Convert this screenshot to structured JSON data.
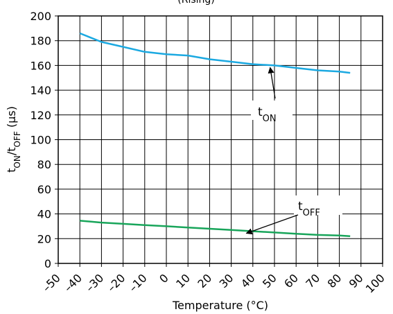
{
  "chart_data": {
    "type": "line",
    "title": "(Rising)",
    "xlabel": "Temperature (°C)",
    "ylabel": "tON/tOFF (µs)",
    "xlim": [
      -50,
      100
    ],
    "ylim": [
      0,
      200
    ],
    "x_ticks": [
      "–50",
      "–40",
      "–30",
      "–20",
      "–10",
      "0",
      "10",
      "20",
      "30",
      "40",
      "50",
      "60",
      "70",
      "80",
      "90",
      "100"
    ],
    "x_tick_values": [
      -50,
      -40,
      -30,
      -20,
      -10,
      0,
      10,
      20,
      30,
      40,
      50,
      60,
      70,
      80,
      90,
      100
    ],
    "y_ticks": [
      "0",
      "20",
      "40",
      "60",
      "80",
      "100",
      "120",
      "140",
      "160",
      "180",
      "200"
    ],
    "y_tick_values": [
      0,
      20,
      40,
      60,
      80,
      100,
      120,
      140,
      160,
      180,
      200
    ],
    "grid": true,
    "series": [
      {
        "name": "tON",
        "color": "#1ba9e1",
        "x": [
          -40,
          -30,
          -20,
          -10,
          0,
          10,
          20,
          30,
          40,
          50,
          60,
          70,
          80,
          85
        ],
        "y": [
          186,
          179,
          175,
          171,
          169,
          168,
          165,
          163,
          161,
          160,
          158,
          156,
          155,
          154
        ]
      },
      {
        "name": "tOFF",
        "color": "#18a55a",
        "x": [
          -40,
          -30,
          -20,
          -10,
          0,
          10,
          20,
          30,
          40,
          50,
          60,
          70,
          80,
          85
        ],
        "y": [
          34.5,
          33,
          32,
          31,
          30,
          29,
          28,
          27,
          26,
          25,
          24,
          23,
          22.5,
          22
        ]
      }
    ],
    "annotations": [
      {
        "series": "tON",
        "label_main": "t",
        "label_sub": "ON",
        "arrow_to_x": 48,
        "arrow_to_y": 160
      },
      {
        "series": "tOFF",
        "label_main": "t",
        "label_sub": "OFF",
        "arrow_to_x": 37,
        "arrow_to_y": 26
      }
    ]
  }
}
